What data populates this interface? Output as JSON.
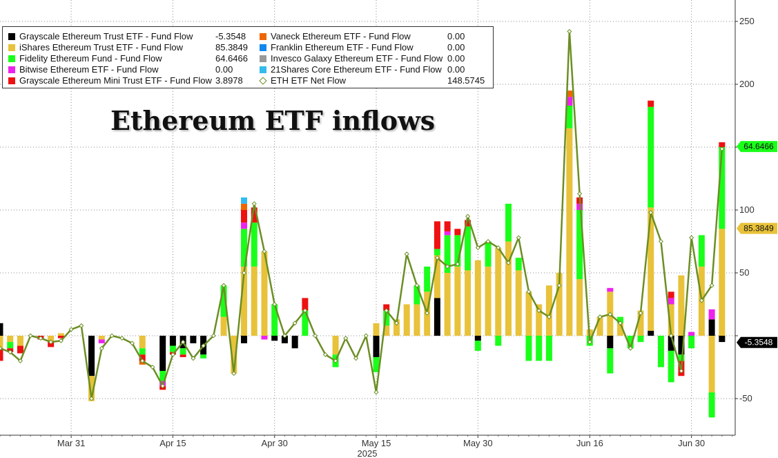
{
  "headline": "Ethereum ETF inflows",
  "chart_data": {
    "type": "bar",
    "stacked": true,
    "title": "Ethereum ETF inflows",
    "xlabel": "2025",
    "ylabel": "",
    "ylim": [
      -78,
      265
    ],
    "y_ticks": [
      -50,
      0,
      50,
      100,
      150,
      200,
      250
    ],
    "y_tick_labels": [
      "-50",
      "",
      "50",
      "100",
      "",
      "200",
      "250"
    ],
    "x_ticks": [
      {
        "label": "Mar 31",
        "index": 7
      },
      {
        "label": "Apr 15",
        "index": 17
      },
      {
        "label": "Apr 30",
        "index": 27
      },
      {
        "label": "May 15",
        "index": 37
      },
      {
        "label": "May 30",
        "index": 47
      },
      {
        "label": "Jun 16",
        "index": 58
      },
      {
        "label": "Jun 30",
        "index": 68
      }
    ],
    "grid": true,
    "legend_position": "top-left",
    "series": [
      {
        "name": "Grayscale Ethereum Trust ETF - Fund Flow",
        "last": "-5.3548",
        "color": "#000000",
        "values": [
          10,
          0,
          0,
          0,
          0,
          0,
          0,
          0,
          0,
          -32,
          0,
          0,
          0,
          0,
          0,
          0,
          -28,
          -8,
          -10,
          -6,
          -15,
          0,
          0,
          0,
          -6,
          0,
          0,
          -4,
          -6,
          -10,
          0,
          0,
          0,
          0,
          0,
          0,
          0,
          -17,
          0,
          0,
          0,
          0,
          0,
          30,
          0,
          0,
          0,
          -4,
          0,
          0,
          0,
          0,
          0,
          0,
          0,
          0,
          0,
          0,
          0,
          0,
          -10,
          0,
          0,
          0,
          4,
          0,
          -12,
          -15,
          0,
          0,
          13,
          -5
        ]
      },
      {
        "name": "iShares Ethereum Trust ETF - Fund Flow",
        "last": "85.3849",
        "color": "#e8c23a",
        "values": [
          -10,
          -5,
          -8,
          0,
          0,
          -5,
          2,
          0,
          0,
          -20,
          -3,
          0,
          0,
          0,
          -10,
          0,
          0,
          0,
          0,
          0,
          0,
          0,
          15,
          -30,
          55,
          55,
          67,
          0,
          0,
          0,
          0,
          0,
          0,
          -15,
          0,
          0,
          0,
          10,
          8,
          13,
          25,
          25,
          35,
          34,
          50,
          55,
          52,
          60,
          55,
          70,
          75,
          52,
          35,
          25,
          40,
          50,
          165,
          45,
          5,
          15,
          35,
          10,
          0,
          20,
          98,
          0,
          25,
          48,
          0,
          55,
          -45,
          85
        ]
      },
      {
        "name": "Fidelity Ethereum Fund - Fund Flow",
        "last": "64.6466",
        "color": "#1aff1a",
        "values": [
          0,
          -5,
          0,
          0,
          0,
          0,
          0,
          0,
          0,
          0,
          0,
          0,
          0,
          0,
          -5,
          0,
          -8,
          -5,
          -5,
          0,
          -3,
          0,
          25,
          0,
          30,
          35,
          0,
          25,
          0,
          0,
          20,
          0,
          0,
          -10,
          0,
          0,
          0,
          -12,
          12,
          0,
          0,
          15,
          20,
          5,
          30,
          25,
          35,
          -8,
          20,
          -8,
          30,
          10,
          -20,
          -20,
          -20,
          0,
          18,
          55,
          -8,
          0,
          -20,
          5,
          -10,
          -5,
          80,
          -25,
          -25,
          -5,
          -10,
          25,
          -20,
          65
        ]
      },
      {
        "name": "Bitwise Ethereum ETF - Fund Flow",
        "last": "0.00",
        "color": "#ee22ee",
        "values": [
          0,
          0,
          0,
          0,
          0,
          0,
          0,
          0,
          0,
          0,
          -3,
          0,
          0,
          0,
          0,
          0,
          -4,
          0,
          0,
          0,
          0,
          0,
          0,
          0,
          5,
          0,
          -3,
          0,
          0,
          0,
          0,
          0,
          0,
          0,
          0,
          0,
          0,
          0,
          0,
          0,
          0,
          0,
          0,
          0,
          3,
          0,
          0,
          0,
          0,
          0,
          0,
          0,
          0,
          0,
          0,
          0,
          7,
          5,
          0,
          0,
          3,
          0,
          0,
          0,
          0,
          0,
          5,
          0,
          3,
          0,
          8,
          0
        ]
      },
      {
        "name": "Grayscale Ethereum Mini Trust ETF - Fund Flow",
        "last": "3.8978",
        "color": "#ee1111",
        "values": [
          -10,
          -3,
          -6,
          0,
          -3,
          -4,
          -2,
          0,
          0,
          0,
          0,
          0,
          0,
          0,
          -5,
          0,
          -3,
          -2,
          -2,
          0,
          0,
          0,
          0,
          0,
          10,
          12,
          0,
          0,
          0,
          0,
          10,
          0,
          0,
          0,
          0,
          0,
          0,
          0,
          5,
          0,
          0,
          0,
          0,
          22,
          8,
          5,
          5,
          0,
          0,
          0,
          0,
          0,
          0,
          0,
          0,
          0,
          0,
          5,
          0,
          0,
          0,
          0,
          0,
          0,
          5,
          0,
          5,
          -12,
          0,
          0,
          0,
          3.9
        ]
      },
      {
        "name": "Vaneck Ethereum ETF - Fund Flow",
        "last": "0.00",
        "color": "#ee6600",
        "values": [
          0,
          0,
          0,
          0,
          0,
          0,
          0,
          0,
          0,
          0,
          0,
          0,
          0,
          0,
          -3,
          0,
          0,
          0,
          0,
          0,
          0,
          0,
          0,
          0,
          5,
          0,
          0,
          0,
          0,
          0,
          0,
          0,
          0,
          0,
          0,
          0,
          0,
          0,
          0,
          0,
          0,
          0,
          0,
          0,
          0,
          0,
          0,
          0,
          0,
          0,
          0,
          0,
          0,
          0,
          0,
          0,
          5,
          0,
          0,
          0,
          0,
          0,
          0,
          0,
          0,
          0,
          0,
          0,
          0,
          0,
          0,
          0
        ]
      },
      {
        "name": "Franklin Ethereum ETF - Fund Flow",
        "last": "0.00",
        "color": "#1188ee",
        "values": []
      },
      {
        "name": "Invesco Galaxy Ethereum ETF - Fund Flow",
        "last": "0.00",
        "color": "#999999",
        "values": []
      },
      {
        "name": "21Shares Core Ethereum ETF - Fund Flow",
        "last": "0.00",
        "color": "#33bbee",
        "values": [
          0,
          0,
          0,
          0,
          0,
          0,
          0,
          0,
          0,
          0,
          0,
          0,
          0,
          0,
          0,
          0,
          0,
          0,
          0,
          0,
          0,
          0,
          0,
          0,
          5,
          0,
          0,
          0,
          0,
          0,
          0,
          0,
          0,
          0,
          0,
          0,
          0,
          0,
          0,
          0,
          0,
          0,
          0,
          0,
          0,
          0,
          0,
          0,
          0,
          0,
          0,
          0,
          0,
          0,
          0,
          0,
          0,
          0,
          0,
          0,
          0,
          0,
          0,
          0,
          0,
          0,
          0,
          0,
          0,
          0,
          0,
          0
        ]
      },
      {
        "name": "ETH ETF Net Flow",
        "last": "148.5745",
        "color": "#6b8e23",
        "type": "line",
        "values": [
          -10,
          -13,
          -20,
          0,
          -2,
          -5,
          -4,
          5,
          8,
          -50,
          -10,
          0,
          -2,
          -6,
          -20,
          -25,
          -40,
          -15,
          -5,
          -18,
          -8,
          0,
          40,
          -30,
          50,
          105,
          67,
          25,
          0,
          10,
          20,
          0,
          -15,
          -20,
          -2,
          -18,
          0,
          -45,
          20,
          10,
          65,
          40,
          18,
          62,
          55,
          57,
          95,
          70,
          75,
          70,
          58,
          78,
          35,
          20,
          15,
          40,
          242,
          113,
          -5,
          15,
          17,
          10,
          -10,
          18,
          98,
          75,
          0,
          -28,
          78,
          28,
          40,
          148.57
        ]
      }
    ],
    "last_value_badges": [
      {
        "value": "64.6466",
        "color": "#1aff1a",
        "y": 150.5
      },
      {
        "value": "85.3849",
        "color": "#e8c23a",
        "y": 85.38
      },
      {
        "value": "-5.3548",
        "color": "#000000",
        "y": -5.35
      }
    ]
  }
}
